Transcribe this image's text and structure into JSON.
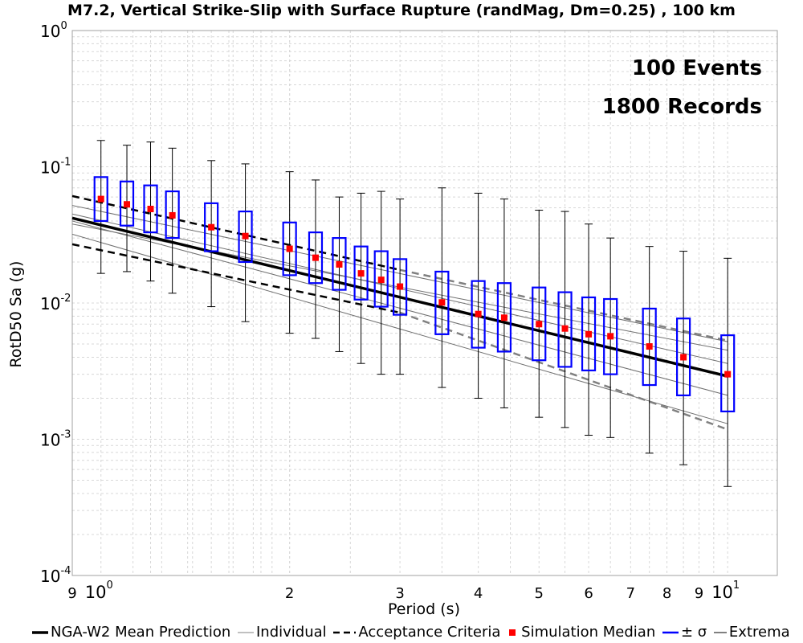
{
  "title": "M7.2, Vertical Strike-Slip with Surface Rupture (randMag, Dm=0.25) , 100 km",
  "ylabel": "RotD50 Sa (g)",
  "xlabel": "Period (s)",
  "annotations": [
    "100 Events",
    "1800 Records"
  ],
  "legend": [
    {
      "label": "NGA-W2 Mean Prediction",
      "style": "thick-line",
      "color": "#000000"
    },
    {
      "label": "Individual",
      "style": "thin-line",
      "color": "#808080"
    },
    {
      "label": "Acceptance Criteria",
      "style": "dashed-line",
      "color": "#000000"
    },
    {
      "label": "Simulation Median",
      "style": "square",
      "color": "#ff0000"
    },
    {
      "label": "± σ",
      "style": "box",
      "color": "#0000ff"
    },
    {
      "label": "Extrema",
      "style": "thin-line",
      "color": "#000000"
    }
  ],
  "chart_data": {
    "type": "box",
    "xscale": "log",
    "yscale": "log",
    "xlim": [
      0.9,
      12
    ],
    "ylim": [
      0.0001,
      1
    ],
    "grid": true,
    "legend_position": "bottom",
    "x_tick_labels": [
      {
        "x": 0.9,
        "base": "9",
        "exp": ""
      },
      {
        "x": 1,
        "base": "10",
        "exp": "0"
      },
      {
        "x": 2,
        "base": "2",
        "exp": ""
      },
      {
        "x": 3,
        "base": "3",
        "exp": ""
      },
      {
        "x": 4,
        "base": "4",
        "exp": ""
      },
      {
        "x": 5,
        "base": "5",
        "exp": ""
      },
      {
        "x": 6,
        "base": "6",
        "exp": ""
      },
      {
        "x": 7,
        "base": "7",
        "exp": ""
      },
      {
        "x": 8,
        "base": "8",
        "exp": ""
      },
      {
        "x": 9,
        "base": "9",
        "exp": ""
      },
      {
        "x": 10,
        "base": "10",
        "exp": "1"
      }
    ],
    "y_tick_labels": [
      {
        "y": 1,
        "base": "10",
        "exp": "0"
      },
      {
        "y": 0.1,
        "base": "10",
        "exp": "-1"
      },
      {
        "y": 0.01,
        "base": "10",
        "exp": "-2"
      },
      {
        "y": 0.001,
        "base": "10",
        "exp": "-3"
      },
      {
        "y": 0.0001,
        "base": "10",
        "exp": "-4"
      }
    ],
    "mean_prediction": {
      "x": [
        0.9,
        10.0
      ],
      "y": [
        0.042,
        0.0029
      ]
    },
    "acceptance_criteria": [
      {
        "name": "lower",
        "color": "#000000",
        "x": [
          0.9,
          3.0
        ],
        "y": [
          0.027,
          0.0085
        ]
      },
      {
        "name": "upper",
        "color": "#000000",
        "x": [
          0.9,
          3.0
        ],
        "y": [
          0.061,
          0.0175
        ]
      },
      {
        "name": "lower",
        "color": "#808080",
        "x": [
          3.0,
          10.0
        ],
        "y": [
          0.0085,
          0.00118
        ]
      },
      {
        "name": "upper",
        "color": "#808080",
        "x": [
          3.0,
          10.0
        ],
        "y": [
          0.0175,
          0.0053
        ]
      }
    ],
    "individual_models": [
      {
        "x": [
          0.9,
          10.0
        ],
        "y": [
          0.038,
          0.0045
        ]
      },
      {
        "x": [
          0.9,
          10.0
        ],
        "y": [
          0.045,
          0.0036
        ]
      },
      {
        "x": [
          0.9,
          10.0
        ],
        "y": [
          0.052,
          0.0052
        ]
      },
      {
        "x": [
          0.9,
          10.0
        ],
        "y": [
          0.032,
          0.0013
        ]
      },
      {
        "x": [
          0.9,
          10.0
        ],
        "y": [
          0.04,
          0.0021
        ]
      }
    ],
    "boxes": [
      {
        "period": 1.0,
        "median": 0.058,
        "q_low": 0.04,
        "q_high": 0.084,
        "min": 0.0165,
        "max": 0.156
      },
      {
        "period": 1.1,
        "median": 0.053,
        "q_low": 0.037,
        "q_high": 0.078,
        "min": 0.017,
        "max": 0.144
      },
      {
        "period": 1.2,
        "median": 0.049,
        "q_low": 0.033,
        "q_high": 0.073,
        "min": 0.0145,
        "max": 0.152
      },
      {
        "period": 1.3,
        "median": 0.044,
        "q_low": 0.03,
        "q_high": 0.066,
        "min": 0.0118,
        "max": 0.137
      },
      {
        "period": 1.5,
        "median": 0.036,
        "q_low": 0.024,
        "q_high": 0.054,
        "min": 0.0094,
        "max": 0.111
      },
      {
        "period": 1.7,
        "median": 0.031,
        "q_low": 0.02,
        "q_high": 0.047,
        "min": 0.0073,
        "max": 0.105
      },
      {
        "period": 2.0,
        "median": 0.025,
        "q_low": 0.016,
        "q_high": 0.039,
        "min": 0.006,
        "max": 0.092
      },
      {
        "period": 2.2,
        "median": 0.0215,
        "q_low": 0.014,
        "q_high": 0.033,
        "min": 0.0055,
        "max": 0.08
      },
      {
        "period": 2.4,
        "median": 0.0192,
        "q_low": 0.0125,
        "q_high": 0.03,
        "min": 0.0044,
        "max": 0.06
      },
      {
        "period": 2.6,
        "median": 0.0165,
        "q_low": 0.0106,
        "q_high": 0.026,
        "min": 0.0036,
        "max": 0.064
      },
      {
        "period": 2.8,
        "median": 0.0148,
        "q_low": 0.0094,
        "q_high": 0.024,
        "min": 0.003,
        "max": 0.066
      },
      {
        "period": 3.0,
        "median": 0.0132,
        "q_low": 0.0082,
        "q_high": 0.021,
        "min": 0.003,
        "max": 0.058
      },
      {
        "period": 3.5,
        "median": 0.0101,
        "q_low": 0.0059,
        "q_high": 0.017,
        "min": 0.0024,
        "max": 0.07
      },
      {
        "period": 4.0,
        "median": 0.0083,
        "q_low": 0.0047,
        "q_high": 0.0145,
        "min": 0.002,
        "max": 0.064
      },
      {
        "period": 4.4,
        "median": 0.0078,
        "q_low": 0.0044,
        "q_high": 0.014,
        "min": 0.0017,
        "max": 0.058
      },
      {
        "period": 5.0,
        "median": 0.007,
        "q_low": 0.0038,
        "q_high": 0.013,
        "min": 0.00145,
        "max": 0.048
      },
      {
        "period": 5.5,
        "median": 0.0065,
        "q_low": 0.0034,
        "q_high": 0.012,
        "min": 0.00122,
        "max": 0.047
      },
      {
        "period": 6.0,
        "median": 0.0059,
        "q_low": 0.0032,
        "q_high": 0.011,
        "min": 0.00107,
        "max": 0.038
      },
      {
        "period": 6.5,
        "median": 0.0057,
        "q_low": 0.003,
        "q_high": 0.0107,
        "min": 0.00103,
        "max": 0.03
      },
      {
        "period": 7.5,
        "median": 0.0048,
        "q_low": 0.0025,
        "q_high": 0.0091,
        "min": 0.00079,
        "max": 0.026
      },
      {
        "period": 8.5,
        "median": 0.004,
        "q_low": 0.0021,
        "q_high": 0.0077,
        "min": 0.00065,
        "max": 0.024
      },
      {
        "period": 10.0,
        "median": 0.003,
        "q_low": 0.0016,
        "q_high": 0.0058,
        "min": 0.00045,
        "max": 0.0213
      }
    ]
  }
}
